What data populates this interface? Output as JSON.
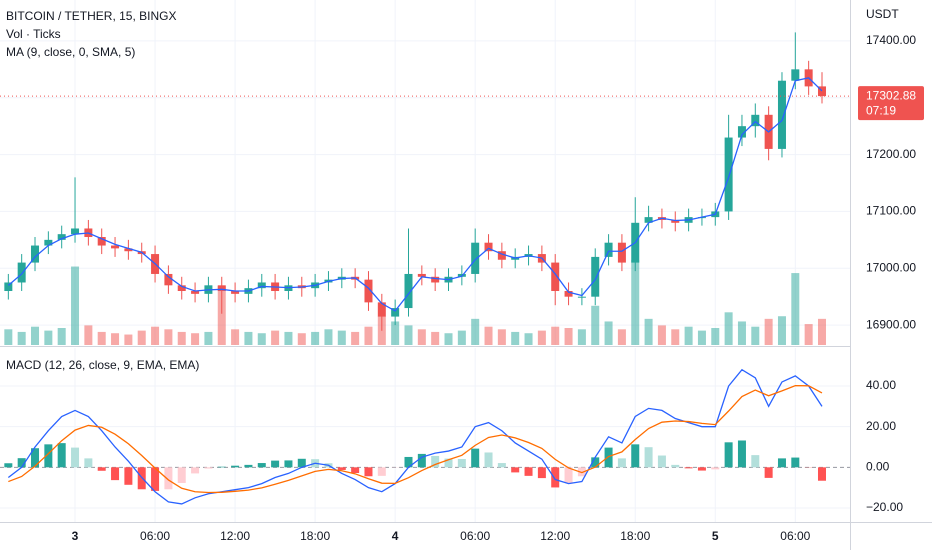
{
  "chart_data": {
    "type": "candlestick",
    "title": "BITCOIN / TETHER, 15, BINGX",
    "y_unit": "USDT",
    "x": [
      -5,
      -4,
      -3,
      -2,
      -1,
      0,
      1,
      2,
      3,
      4,
      5,
      6,
      7,
      8,
      9,
      10,
      11,
      12,
      13,
      14,
      15,
      16,
      17,
      18,
      19,
      20,
      21,
      22,
      23,
      24,
      25,
      26,
      27,
      28,
      29,
      30,
      31,
      32,
      33,
      34,
      35,
      36,
      37,
      38,
      39,
      40,
      41,
      42,
      43,
      44,
      45,
      46,
      47,
      48,
      49,
      50,
      51,
      52,
      53,
      54,
      55,
      56
    ],
    "xlim": [
      -5.625,
      58.1
    ],
    "xticks": [
      {
        "value": 0,
        "label": "3"
      },
      {
        "value": 6,
        "label": "06:00"
      },
      {
        "value": 12,
        "label": "12:00"
      },
      {
        "value": 18,
        "label": "18:00"
      },
      {
        "value": 24,
        "label": "4"
      },
      {
        "value": 30,
        "label": "06:00"
      },
      {
        "value": 36,
        "label": "12:00"
      },
      {
        "value": 42,
        "label": "18:00"
      },
      {
        "value": 48,
        "label": "5"
      },
      {
        "value": 54,
        "label": "06:00"
      }
    ],
    "open": [
      16960,
      16975,
      17010,
      17040,
      17050,
      17060,
      17070,
      17055,
      17040,
      17035,
      17030,
      17025,
      16990,
      16970,
      16960,
      16955,
      16970,
      16960,
      16955,
      16965,
      16975,
      16960,
      16970,
      16965,
      16975,
      16980,
      16985,
      16980,
      16940,
      16915,
      16930,
      16990,
      16985,
      16975,
      16985,
      16990,
      17045,
      17030,
      17015,
      17020,
      17025,
      17010,
      16960,
      16950,
      16950,
      17020,
      17045,
      17010,
      17080,
      17090,
      17085,
      17080,
      17090,
      17090,
      17100,
      17230,
      17250,
      17270,
      17210,
      17330,
      17350,
      17320
    ],
    "high": [
      16990,
      17025,
      17055,
      17065,
      17075,
      17160,
      17085,
      17070,
      17055,
      17050,
      17045,
      17040,
      17005,
      16985,
      16975,
      16985,
      16985,
      16975,
      16980,
      16990,
      16990,
      16985,
      16985,
      16990,
      16995,
      17000,
      17000,
      16995,
      16955,
      16945,
      17070,
      17005,
      17000,
      17000,
      17005,
      17070,
      17060,
      17045,
      17035,
      17040,
      17040,
      17025,
      16975,
      16965,
      17035,
      17060,
      17060,
      17125,
      17110,
      17105,
      17100,
      17105,
      17105,
      17115,
      17270,
      17270,
      17290,
      17285,
      17345,
      17415,
      17365,
      17345
    ],
    "low": [
      16945,
      16960,
      16995,
      17025,
      17035,
      17045,
      17040,
      17025,
      17020,
      17015,
      17010,
      16975,
      16955,
      16945,
      16940,
      16940,
      16920,
      16940,
      16940,
      16950,
      16945,
      16945,
      16950,
      16950,
      16960,
      16965,
      16965,
      16925,
      16890,
      16900,
      16915,
      16970,
      16960,
      16960,
      16970,
      16975,
      17015,
      17000,
      17000,
      17005,
      16995,
      16935,
      16935,
      16935,
      16935,
      17005,
      16995,
      16995,
      17065,
      17070,
      17065,
      17065,
      17075,
      17075,
      17085,
      17215,
      17230,
      17190,
      17195,
      17315,
      17305,
      17290
    ],
    "close": [
      16975,
      17010,
      17040,
      17050,
      17060,
      17070,
      17055,
      17040,
      17035,
      17030,
      17025,
      16990,
      16970,
      16960,
      16955,
      16970,
      16960,
      16955,
      16965,
      16975,
      16960,
      16970,
      16965,
      16975,
      16980,
      16985,
      16980,
      16940,
      16915,
      16930,
      16990,
      16985,
      16975,
      16985,
      16990,
      17045,
      17030,
      17015,
      17020,
      17025,
      17010,
      16960,
      16950,
      16950,
      17020,
      17045,
      17010,
      17080,
      17090,
      17085,
      17080,
      17090,
      17090,
      17100,
      17230,
      17250,
      17270,
      17210,
      17330,
      17350,
      17320,
      17302.88
    ],
    "ylim": [
      16865,
      17472
    ],
    "yticks": [
      {
        "value": 16900,
        "label": "16900.00"
      },
      {
        "value": 17000,
        "label": "17000.00"
      },
      {
        "value": 17100,
        "label": "17100.00"
      },
      {
        "value": 17200,
        "label": "17200.00"
      },
      {
        "value": 17300,
        "label": "17300.00"
      },
      {
        "value": 17400,
        "label": "17400.00"
      }
    ],
    "up_color": "#26a69a",
    "down_color": "#ef5350",
    "grid": true,
    "countdown": "07:19",
    "volume": {
      "name": "Vol · Ticks",
      "values": [
        12,
        10,
        14,
        11,
        13,
        60,
        15,
        10,
        9,
        8,
        11,
        14,
        12,
        10,
        9,
        10,
        45,
        12,
        10,
        9,
        11,
        10,
        9,
        10,
        12,
        11,
        10,
        14,
        22,
        18,
        15,
        12,
        10,
        9,
        11,
        20,
        14,
        12,
        10,
        9,
        11,
        14,
        13,
        12,
        30,
        18,
        12,
        65,
        20,
        15,
        12,
        14,
        11,
        13,
        25,
        18,
        14,
        20,
        22,
        55,
        16,
        20
      ]
    },
    "ma": {
      "name": "MA (9, close, 0, SMA, 5)",
      "color": "#2962ff",
      "values": [
        16970,
        16990,
        17020,
        17040,
        17052,
        17060,
        17062,
        17052,
        17042,
        17035,
        17028,
        17008,
        16985,
        16968,
        16960,
        16962,
        16963,
        16960,
        16960,
        16968,
        16967,
        16966,
        16967,
        16970,
        16977,
        16982,
        16983,
        16965,
        16938,
        16925,
        16955,
        16985,
        16982,
        16980,
        16986,
        17015,
        17035,
        17025,
        17018,
        17022,
        17018,
        16990,
        16958,
        16952,
        16980,
        17030,
        17030,
        17045,
        17080,
        17088,
        17084,
        17085,
        17090,
        17095,
        17160,
        17235,
        17258,
        17240,
        17260,
        17330,
        17335,
        17312
      ]
    },
    "macd": {
      "name": "MACD (12, 26, close, 9, EMA, EMA)",
      "ylim": [
        -26.9,
        58.7
      ],
      "yticks": [
        {
          "value": -20,
          "label": "−20.00"
        },
        {
          "value": 0,
          "label": "0.00"
        },
        {
          "value": 20,
          "label": "20.00"
        },
        {
          "value": 40,
          "label": "40.00"
        }
      ],
      "macd_line": {
        "color": "#2962ff",
        "values": [
          -5,
          0,
          10,
          18,
          25,
          28,
          25,
          18,
          10,
          3,
          -5,
          -12,
          -17,
          -18,
          -15,
          -13,
          -12,
          -11,
          -10,
          -8,
          -5,
          -3,
          0,
          2,
          1,
          -3,
          -6,
          -10,
          -12,
          -8,
          0,
          5,
          7,
          8,
          10,
          20,
          22,
          18,
          12,
          8,
          4,
          -6,
          -8,
          -7,
          5,
          15,
          12,
          25,
          29,
          28,
          24,
          22,
          20,
          20,
          40,
          48,
          44,
          30,
          42,
          45,
          40,
          30
        ]
      },
      "signal_line": {
        "color": "#ff6d00",
        "values": [
          -7,
          -4.5,
          0.6,
          6.7,
          13.1,
          18.3,
          20.6,
          19.7,
          16.3,
          11.6,
          5.8,
          -0.4,
          -6.2,
          -10.3,
          -12,
          -12.4,
          -12.3,
          -11.8,
          -11.2,
          -10.1,
          -8.3,
          -6.4,
          -4.2,
          -2,
          -1,
          -1.7,
          -3.2,
          -5.6,
          -7.8,
          -7.9,
          -5.1,
          -1.6,
          1.4,
          3.7,
          5.9,
          10.8,
          14.7,
          15.9,
          14.5,
          12.2,
          9.3,
          3.9,
          -0.3,
          -2.6,
          0.1,
          5.3,
          7.6,
          13.7,
          19.1,
          22.2,
          22.8,
          22.5,
          21.6,
          21,
          27.7,
          34.8,
          38,
          35.2,
          37.6,
          40.2,
          40.1,
          36.6
        ]
      },
      "histogram": {
        "values": [
          2,
          4.5,
          9.4,
          11.3,
          11.9,
          9.7,
          4.4,
          -1.7,
          -6.3,
          -8.6,
          -10.8,
          -11.6,
          -10.8,
          -7.7,
          -3,
          -0.6,
          0.3,
          0.8,
          1.2,
          2.1,
          3.3,
          3.4,
          4.2,
          4,
          2,
          -1.3,
          -2.8,
          -4.4,
          -4.2,
          -0.1,
          5.1,
          6.6,
          5.6,
          4.3,
          4.1,
          9.2,
          7.3,
          2.1,
          -2.5,
          -4.2,
          -5.3,
          -9.9,
          -7.7,
          -4.4,
          4.9,
          9.7,
          4.4,
          11.3,
          9.9,
          5.8,
          1.2,
          -0.5,
          -1.6,
          -1,
          12.3,
          13.2,
          6,
          -5.2,
          4.4,
          4.8,
          -0.1,
          -6.6
        ]
      }
    }
  }
}
